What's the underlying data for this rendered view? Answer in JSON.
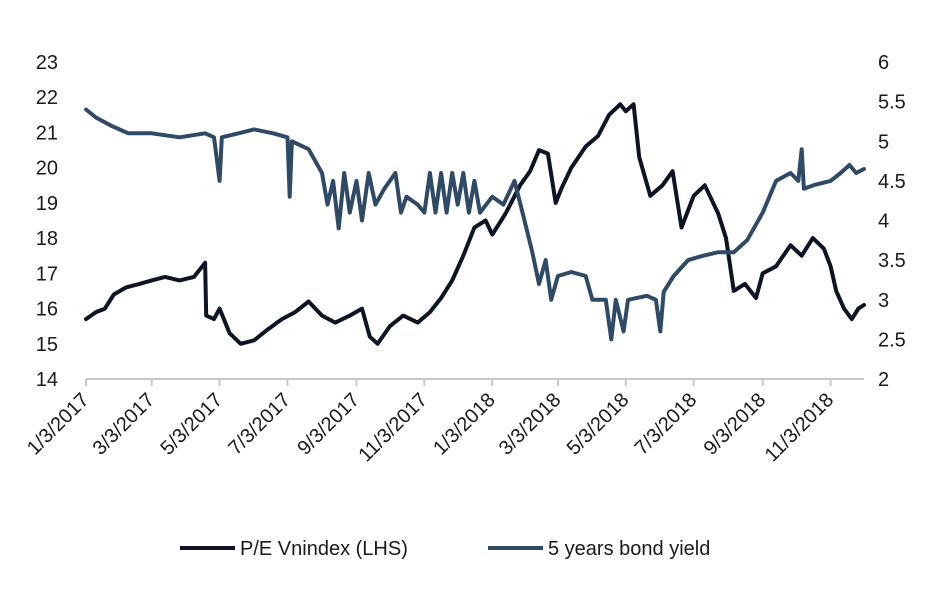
{
  "chart_data": {
    "type": "line",
    "title": "",
    "xlabel": "",
    "ylabel_left": "",
    "ylabel_right": "",
    "x_ticks": [
      "1/3/2017",
      "3/3/2017",
      "5/3/2017",
      "7/3/2017",
      "9/3/2017",
      "11/3/2017",
      "1/3/2018",
      "3/3/2018",
      "5/3/2018",
      "7/3/2018",
      "9/3/2018",
      "11/3/2018"
    ],
    "x_range": [
      "2017-01-03",
      "2018-12-03"
    ],
    "y_left_ticks": [
      14,
      15,
      16,
      17,
      18,
      19,
      20,
      21,
      22,
      23
    ],
    "y_left_range": [
      14,
      23
    ],
    "y_right_ticks": [
      2,
      2.5,
      3,
      3.5,
      4,
      4.5,
      5,
      5.5,
      6
    ],
    "y_right_range": [
      2,
      6
    ],
    "grid": false,
    "legend_position": "bottom",
    "colors": {
      "pe": "#0d1424",
      "bond": "#2f4a66",
      "text": "#1a1a1a",
      "axis": "#c8c8c8"
    },
    "series": [
      {
        "name": "P/E Vnindex (LHS)",
        "axis": "left",
        "points": [
          [
            "2017-01-03",
            15.7
          ],
          [
            "2017-01-12",
            15.9
          ],
          [
            "2017-01-20",
            16.0
          ],
          [
            "2017-01-28",
            16.4
          ],
          [
            "2017-02-08",
            16.6
          ],
          [
            "2017-02-20",
            16.7
          ],
          [
            "2017-03-03",
            16.8
          ],
          [
            "2017-03-15",
            16.9
          ],
          [
            "2017-03-28",
            16.8
          ],
          [
            "2017-04-10",
            16.9
          ],
          [
            "2017-04-20",
            17.3
          ],
          [
            "2017-04-21",
            15.8
          ],
          [
            "2017-04-28",
            15.7
          ],
          [
            "2017-05-03",
            16.0
          ],
          [
            "2017-05-12",
            15.3
          ],
          [
            "2017-05-22",
            15.0
          ],
          [
            "2017-06-03",
            15.1
          ],
          [
            "2017-06-15",
            15.4
          ],
          [
            "2017-06-28",
            15.7
          ],
          [
            "2017-07-10",
            15.9
          ],
          [
            "2017-07-22",
            16.2
          ],
          [
            "2017-08-03",
            15.8
          ],
          [
            "2017-08-15",
            15.6
          ],
          [
            "2017-08-28",
            15.8
          ],
          [
            "2017-09-08",
            16.0
          ],
          [
            "2017-09-15",
            15.2
          ],
          [
            "2017-09-22",
            15.0
          ],
          [
            "2017-10-03",
            15.5
          ],
          [
            "2017-10-15",
            15.8
          ],
          [
            "2017-10-28",
            15.6
          ],
          [
            "2017-11-08",
            15.9
          ],
          [
            "2017-11-18",
            16.3
          ],
          [
            "2017-11-28",
            16.8
          ],
          [
            "2017-12-08",
            17.5
          ],
          [
            "2017-12-18",
            18.3
          ],
          [
            "2017-12-28",
            18.5
          ],
          [
            "2018-01-03",
            18.1
          ],
          [
            "2018-01-15",
            18.7
          ],
          [
            "2018-01-28",
            19.5
          ],
          [
            "2018-02-06",
            19.9
          ],
          [
            "2018-02-14",
            20.5
          ],
          [
            "2018-02-22",
            20.4
          ],
          [
            "2018-03-01",
            19.0
          ],
          [
            "2018-03-06",
            19.4
          ],
          [
            "2018-03-15",
            20.0
          ],
          [
            "2018-03-28",
            20.6
          ],
          [
            "2018-04-08",
            20.9
          ],
          [
            "2018-04-18",
            21.5
          ],
          [
            "2018-04-28",
            21.8
          ],
          [
            "2018-05-03",
            21.6
          ],
          [
            "2018-05-10",
            21.8
          ],
          [
            "2018-05-15",
            20.3
          ],
          [
            "2018-05-25",
            19.2
          ],
          [
            "2018-06-05",
            19.5
          ],
          [
            "2018-06-14",
            19.9
          ],
          [
            "2018-06-22",
            18.3
          ],
          [
            "2018-07-03",
            19.2
          ],
          [
            "2018-07-13",
            19.5
          ],
          [
            "2018-07-25",
            18.7
          ],
          [
            "2018-08-01",
            18.0
          ],
          [
            "2018-08-08",
            16.5
          ],
          [
            "2018-08-18",
            16.7
          ],
          [
            "2018-08-28",
            16.3
          ],
          [
            "2018-09-03",
            17.0
          ],
          [
            "2018-09-15",
            17.2
          ],
          [
            "2018-09-28",
            17.8
          ],
          [
            "2018-10-08",
            17.5
          ],
          [
            "2018-10-18",
            18.0
          ],
          [
            "2018-10-28",
            17.7
          ],
          [
            "2018-11-03",
            17.2
          ],
          [
            "2018-11-08",
            16.5
          ],
          [
            "2018-11-15",
            16.0
          ],
          [
            "2018-11-22",
            15.7
          ],
          [
            "2018-11-28",
            16.0
          ],
          [
            "2018-12-03",
            16.1
          ]
        ]
      },
      {
        "name": "5 years bond yield",
        "axis": "right",
        "points": [
          [
            "2017-01-03",
            5.4
          ],
          [
            "2017-01-12",
            5.3
          ],
          [
            "2017-01-25",
            5.2
          ],
          [
            "2017-02-10",
            5.1
          ],
          [
            "2017-03-03",
            5.1
          ],
          [
            "2017-03-28",
            5.05
          ],
          [
            "2017-04-20",
            5.1
          ],
          [
            "2017-04-28",
            5.05
          ],
          [
            "2017-05-03",
            4.5
          ],
          [
            "2017-05-05",
            5.05
          ],
          [
            "2017-05-20",
            5.1
          ],
          [
            "2017-06-03",
            5.15
          ],
          [
            "2017-06-20",
            5.1
          ],
          [
            "2017-07-03",
            5.05
          ],
          [
            "2017-07-05",
            4.3
          ],
          [
            "2017-07-07",
            5.0
          ],
          [
            "2017-07-22",
            4.9
          ],
          [
            "2017-08-03",
            4.6
          ],
          [
            "2017-08-08",
            4.2
          ],
          [
            "2017-08-13",
            4.5
          ],
          [
            "2017-08-18",
            3.9
          ],
          [
            "2017-08-23",
            4.6
          ],
          [
            "2017-08-28",
            4.1
          ],
          [
            "2017-09-03",
            4.5
          ],
          [
            "2017-09-08",
            4.0
          ],
          [
            "2017-09-14",
            4.6
          ],
          [
            "2017-09-20",
            4.2
          ],
          [
            "2017-09-28",
            4.4
          ],
          [
            "2017-10-08",
            4.6
          ],
          [
            "2017-10-13",
            4.1
          ],
          [
            "2017-10-18",
            4.3
          ],
          [
            "2017-10-28",
            4.2
          ],
          [
            "2017-11-03",
            4.1
          ],
          [
            "2017-11-08",
            4.6
          ],
          [
            "2017-11-13",
            4.1
          ],
          [
            "2017-11-18",
            4.6
          ],
          [
            "2017-11-23",
            4.1
          ],
          [
            "2017-11-28",
            4.6
          ],
          [
            "2017-12-03",
            4.2
          ],
          [
            "2017-12-08",
            4.6
          ],
          [
            "2017-12-13",
            4.1
          ],
          [
            "2017-12-18",
            4.5
          ],
          [
            "2017-12-23",
            4.1
          ],
          [
            "2018-01-03",
            4.3
          ],
          [
            "2018-01-13",
            4.2
          ],
          [
            "2018-01-23",
            4.5
          ],
          [
            "2018-02-01",
            4.0
          ],
          [
            "2018-02-08",
            3.6
          ],
          [
            "2018-02-14",
            3.2
          ],
          [
            "2018-02-20",
            3.5
          ],
          [
            "2018-02-25",
            3.0
          ],
          [
            "2018-03-03",
            3.3
          ],
          [
            "2018-03-15",
            3.35
          ],
          [
            "2018-03-28",
            3.3
          ],
          [
            "2018-04-03",
            3.0
          ],
          [
            "2018-04-15",
            3.0
          ],
          [
            "2018-04-20",
            2.5
          ],
          [
            "2018-04-24",
            3.0
          ],
          [
            "2018-05-01",
            2.6
          ],
          [
            "2018-05-05",
            3.0
          ],
          [
            "2018-05-22",
            3.05
          ],
          [
            "2018-05-30",
            3.0
          ],
          [
            "2018-06-03",
            2.6
          ],
          [
            "2018-06-06",
            3.1
          ],
          [
            "2018-06-15",
            3.3
          ],
          [
            "2018-06-28",
            3.5
          ],
          [
            "2018-07-10",
            3.55
          ],
          [
            "2018-07-25",
            3.6
          ],
          [
            "2018-08-08",
            3.6
          ],
          [
            "2018-08-20",
            3.75
          ],
          [
            "2018-09-03",
            4.1
          ],
          [
            "2018-09-15",
            4.5
          ],
          [
            "2018-09-28",
            4.6
          ],
          [
            "2018-10-05",
            4.5
          ],
          [
            "2018-10-08",
            4.9
          ],
          [
            "2018-10-10",
            4.4
          ],
          [
            "2018-10-20",
            4.45
          ],
          [
            "2018-11-03",
            4.5
          ],
          [
            "2018-11-12",
            4.6
          ],
          [
            "2018-11-20",
            4.7
          ],
          [
            "2018-11-26",
            4.6
          ],
          [
            "2018-12-03",
            4.65
          ]
        ]
      }
    ]
  }
}
